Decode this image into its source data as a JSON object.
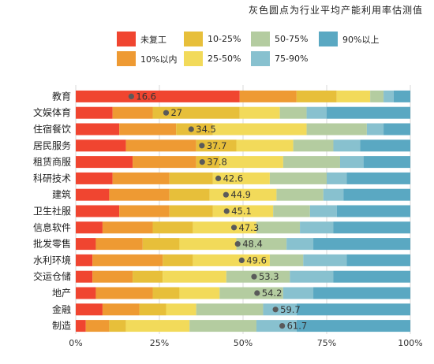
{
  "note": "灰色圆点为行业平均产能利用率估测值",
  "colors": {
    "未复工": "#f04530",
    "10%以内": "#ee9a33",
    "10-25%": "#e7bf3a",
    "25-50%": "#f2da5a",
    "50-75%": "#b4cca0",
    "75-90%": "#88c1cf",
    "90%以上": "#5aa8c2",
    "dot": "#5a5a5a",
    "grid": "#d9d9d9"
  },
  "legend": [
    "未复工",
    "10%以内",
    "10-25%",
    "25-50%",
    "50-75%",
    "75-90%",
    "90%以上"
  ],
  "chart_data": {
    "type": "bar",
    "orientation": "horizontal",
    "stacked": true,
    "xlim": [
      0,
      100
    ],
    "x_tick_labels": [
      "0%",
      "25%",
      "50%",
      "75%",
      "100%"
    ],
    "grid": true,
    "categories": [
      "教育",
      "文娱体育",
      "住宿餐饮",
      "居民服务",
      "租赁商服",
      "科研技术",
      "建筑",
      "卫生社服",
      "信息软件",
      "批发零售",
      "水利环境",
      "交运仓储",
      "地产",
      "金融",
      "制造"
    ],
    "series": [
      {
        "name": "未复工",
        "values": [
          49,
          11,
          13,
          15,
          17,
          11,
          10,
          13,
          8,
          6,
          5,
          5,
          6,
          8,
          3
        ]
      },
      {
        "name": "10%以内",
        "values": [
          17,
          12,
          17,
          21,
          19,
          17,
          18,
          15,
          15,
          14,
          21,
          12,
          17,
          11,
          7
        ]
      },
      {
        "name": "10-25%",
        "values": [
          12,
          26,
          11,
          12,
          7,
          13,
          12,
          13,
          12,
          11,
          9,
          9,
          8,
          8,
          5
        ]
      },
      {
        "name": "25-50%",
        "values": [
          10,
          12,
          28,
          17,
          19,
          17,
          20,
          18,
          19,
          17,
          23,
          19,
          12,
          9,
          19
        ]
      },
      {
        "name": "50-75%",
        "values": [
          4,
          8,
          18,
          12,
          17,
          17,
          14,
          11,
          13,
          15,
          10,
          19,
          19,
          20,
          20
        ]
      },
      {
        "name": "75-90%",
        "values": [
          3,
          6,
          5,
          8,
          7,
          6,
          6,
          8,
          10,
          8,
          13,
          13,
          9,
          10,
          12
        ]
      },
      {
        "name": "90%以上",
        "values": [
          5,
          25,
          8,
          15,
          14,
          19,
          20,
          22,
          23,
          29,
          19,
          23,
          29,
          34,
          34
        ]
      }
    ],
    "averages": [
      16.6,
      27,
      34.5,
      37.7,
      37.8,
      42.6,
      44.9,
      45.1,
      47.3,
      48.4,
      49.6,
      53.3,
      54.2,
      59.7,
      61.7
    ],
    "average_labels": [
      "16.6",
      "27",
      "34.5",
      "37.7",
      "37.8",
      "42.6",
      "44.9",
      "45.1",
      "47.3",
      "48.4",
      "49.6",
      "53.3",
      "54.2",
      "59.7",
      "61.7"
    ]
  }
}
